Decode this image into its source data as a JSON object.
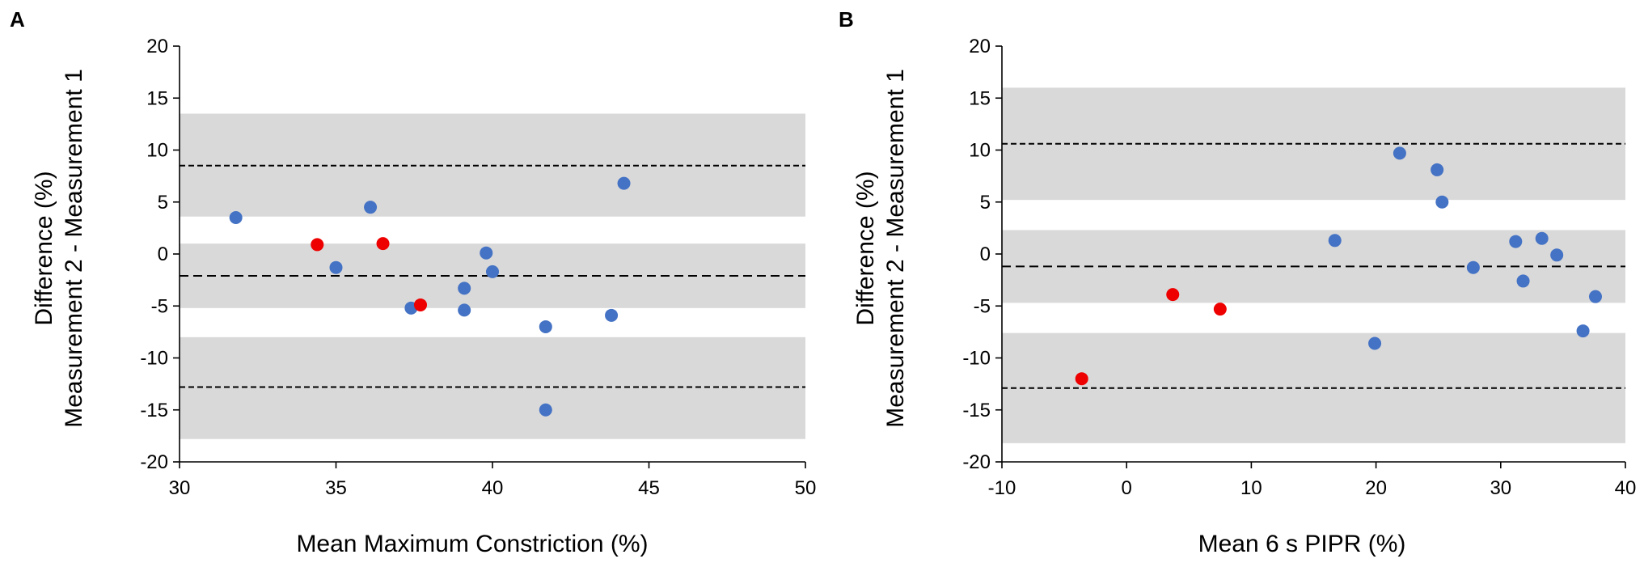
{
  "chart_data": [
    {
      "type": "scatter",
      "panel": "A",
      "title": "",
      "xlabel": "Mean Maximum Constriction (%)",
      "ylabel": [
        "Difference (%)",
        "Measurement 2 - Measurement 1"
      ],
      "xlim": [
        30,
        50
      ],
      "ylim": [
        -20,
        20
      ],
      "xticks": [
        30,
        35,
        40,
        45,
        50
      ],
      "yticks": [
        20,
        15,
        10,
        5,
        0,
        -5,
        -10,
        -15,
        -20
      ],
      "bands": [
        [
          3.6,
          13.5
        ],
        [
          -5.2,
          1.0
        ],
        [
          -17.8,
          -8.0
        ]
      ],
      "mean_diff": -2.1,
      "upper_loa": 8.5,
      "lower_loa": -12.8,
      "colors": {
        "blue": "#4472c4",
        "red": "#ee0000",
        "band": "#d9d9d9"
      },
      "series": [
        {
          "name": "blue",
          "color": "#4472c4",
          "points": [
            [
              31.8,
              3.5
            ],
            [
              35.0,
              -1.3
            ],
            [
              36.1,
              4.5
            ],
            [
              37.4,
              -5.2
            ],
            [
              39.1,
              -3.3
            ],
            [
              39.1,
              -5.4
            ],
            [
              39.8,
              0.1
            ],
            [
              40.0,
              -1.7
            ],
            [
              41.7,
              -7.0
            ],
            [
              41.7,
              -15.0
            ],
            [
              43.8,
              -5.9
            ],
            [
              44.2,
              6.8
            ]
          ]
        },
        {
          "name": "red",
          "color": "#ee0000",
          "points": [
            [
              34.4,
              0.9
            ],
            [
              36.5,
              1.0
            ],
            [
              37.7,
              -4.9
            ]
          ]
        }
      ]
    },
    {
      "type": "scatter",
      "panel": "B",
      "title": "",
      "xlabel": "Mean 6 s PIPR (%)",
      "ylabel": [
        "Difference (%)",
        "Measurement 2 - Measurement 1"
      ],
      "xlim": [
        -10,
        40
      ],
      "ylim": [
        -20,
        20
      ],
      "xticks": [
        -10,
        0,
        10,
        20,
        30,
        40
      ],
      "yticks": [
        20,
        15,
        10,
        5,
        0,
        -5,
        -10,
        -15,
        -20
      ],
      "bands": [
        [
          5.2,
          16.0
        ],
        [
          -4.7,
          2.3
        ],
        [
          -18.2,
          -7.6
        ]
      ],
      "mean_diff": -1.2,
      "upper_loa": 10.6,
      "lower_loa": -12.9,
      "colors": {
        "blue": "#4472c4",
        "red": "#ee0000",
        "band": "#d9d9d9"
      },
      "series": [
        {
          "name": "blue",
          "color": "#4472c4",
          "points": [
            [
              16.7,
              1.3
            ],
            [
              19.9,
              -8.6
            ],
            [
              21.9,
              9.7
            ],
            [
              24.9,
              8.1
            ],
            [
              25.3,
              5.0
            ],
            [
              27.8,
              -1.3
            ],
            [
              31.2,
              1.2
            ],
            [
              31.8,
              -2.6
            ],
            [
              33.3,
              1.5
            ],
            [
              34.5,
              -0.1
            ],
            [
              36.6,
              -7.4
            ],
            [
              37.6,
              -4.1
            ]
          ]
        },
        {
          "name": "red",
          "color": "#ee0000",
          "points": [
            [
              -3.6,
              -12.0
            ],
            [
              3.7,
              -3.9
            ],
            [
              7.5,
              -5.3
            ]
          ]
        }
      ]
    }
  ]
}
